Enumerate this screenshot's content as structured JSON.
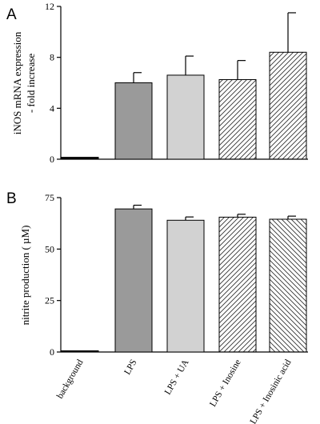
{
  "chart_data": [
    {
      "panel_label": "A",
      "type": "bar",
      "categories": [
        "background",
        "LPS",
        "LPS + UA",
        "LPS + Inosine",
        "LPS + Inosinic acid"
      ],
      "values": [
        0.15,
        6.0,
        6.6,
        6.25,
        8.4
      ],
      "errors": [
        0.05,
        0.8,
        1.5,
        1.5,
        3.1
      ],
      "ylabel": [
        "iNOS mRNA expression",
        "- fold increase"
      ],
      "ylim": [
        0,
        12
      ],
      "yticks": [
        0,
        4,
        8,
        12
      ],
      "fills": [
        "black",
        "dark-gray",
        "light-gray",
        "hatch-right",
        "hatch-right"
      ],
      "grid": false
    },
    {
      "panel_label": "B",
      "type": "bar",
      "categories": [
        "background",
        "LPS",
        "LPS + UA",
        "LPS + Inosine",
        "LPS + Inosinic acid"
      ],
      "values": [
        0.2,
        69.5,
        64.0,
        65.5,
        64.5
      ],
      "errors": [
        0.1,
        1.8,
        1.6,
        1.4,
        1.5
      ],
      "ylabel": [
        "nitrite production ( µM)"
      ],
      "ylim": [
        0,
        75
      ],
      "yticks": [
        0,
        25,
        50,
        75
      ],
      "fills": [
        "black",
        "dark-gray",
        "light-gray",
        "hatch-right",
        "hatch-left"
      ],
      "grid": false
    }
  ],
  "colors": {
    "black": "#000000",
    "dark-gray": "#9a9a9a",
    "light-gray": "#d2d2d2",
    "hatch": "#333333"
  }
}
